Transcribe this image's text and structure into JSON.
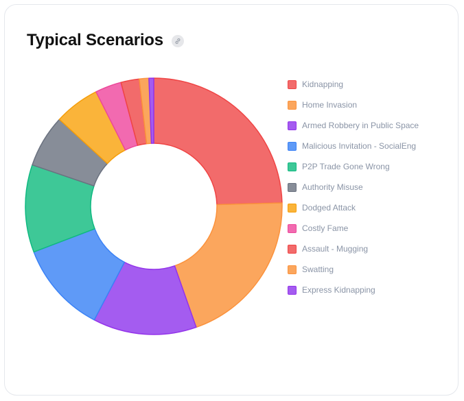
{
  "card": {
    "title": "Typical Scenarios",
    "link_icon": "link-icon"
  },
  "chart_data": {
    "type": "pie",
    "variant": "doughnut",
    "title": "Typical Scenarios",
    "legend_position": "right",
    "categories": [
      "Kidnapping",
      "Home Invasion",
      "Armed Robbery in Public Space",
      "Malicious Invitation - SocialEng",
      "P2P Trade Gone Wrong",
      "Authority Misuse",
      "Dodged Attack",
      "Costly Fame",
      "Assault - Mugging",
      "Swatting",
      "Express Kidnapping"
    ],
    "values": [
      24.5,
      20.0,
      13.0,
      11.5,
      11.0,
      6.6,
      5.7,
      3.3,
      2.3,
      1.2,
      0.6
    ],
    "colors": [
      {
        "fill": "#f26b6b",
        "border": "#ef4444"
      },
      {
        "fill": "#fba65d",
        "border": "#fb923c"
      },
      {
        "fill": "#a45cf0",
        "border": "#9333ea"
      },
      {
        "fill": "#5f9af7",
        "border": "#3b82f6"
      },
      {
        "fill": "#3ec897",
        "border": "#10b981"
      },
      {
        "fill": "#878d98",
        "border": "#6b7280"
      },
      {
        "fill": "#fab43a",
        "border": "#f59e0b"
      },
      {
        "fill": "#f26ab0",
        "border": "#ec4899"
      },
      {
        "fill": "#f26b6b",
        "border": "#ef4444"
      },
      {
        "fill": "#fba65d",
        "border": "#fb923c"
      },
      {
        "fill": "#a45cf0",
        "border": "#9333ea"
      }
    ]
  }
}
